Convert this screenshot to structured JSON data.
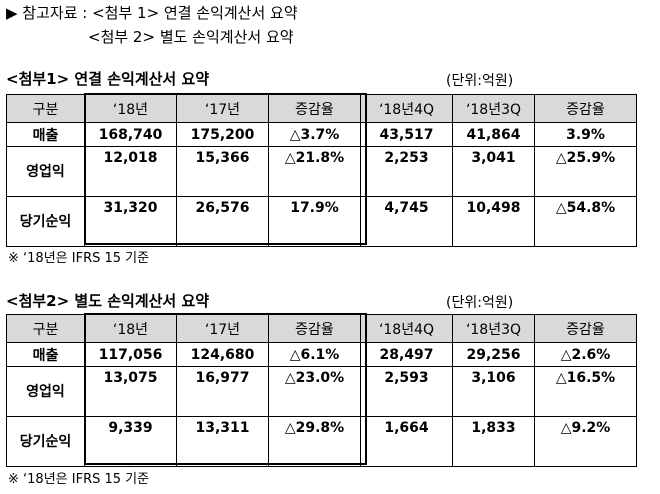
{
  "header": {
    "line1": "▶ 참고자료 : <첨부 1> 연결 손익계산서 요약",
    "line2": "<첨부 2> 별도 손익계산서 요약"
  },
  "tables": [
    {
      "title": "<첨부1> 연결 손익계산서 요약",
      "unit": "(단위:억원)",
      "columns": [
        "구분",
        "‘18년",
        "‘17년",
        "증감율",
        "‘18년4Q",
        "‘18년3Q",
        "증감율"
      ],
      "rows": [
        {
          "label": "매출",
          "values": [
            "168,740",
            "175,200",
            "△3.7%",
            "43,517",
            "41,864",
            "3.9%"
          ]
        },
        {
          "label": "영업익",
          "values": [
            "12,018",
            "15,366",
            "△21.8%",
            "2,253",
            "3,041",
            "△25.9%"
          ]
        },
        {
          "label": "당기순익",
          "values": [
            "31,320",
            "26,576",
            "17.9%",
            "4,745",
            "10,498",
            "△54.8%"
          ]
        }
      ],
      "note": "※ ‘18년은 IFRS 15 기준"
    },
    {
      "title": "<첨부2> 별도 손익계산서 요약",
      "unit": "(단위:억원)",
      "columns": [
        "구분",
        "‘18년",
        "‘17년",
        "증감율",
        "‘18년4Q",
        "‘18년3Q",
        "증감율"
      ],
      "rows": [
        {
          "label": "매출",
          "values": [
            "117,056",
            "124,680",
            "△6.1%",
            "28,497",
            "29,256",
            "△2.6%"
          ]
        },
        {
          "label": "영업익",
          "values": [
            "13,075",
            "16,977",
            "△23.0%",
            "2,593",
            "3,106",
            "△16.5%"
          ]
        },
        {
          "label": "당기순익",
          "values": [
            "9,339",
            "13,311",
            "△29.8%",
            "1,664",
            "1,833",
            "△9.2%"
          ]
        }
      ],
      "note": "※ ‘18년은 IFRS 15 기준"
    }
  ]
}
